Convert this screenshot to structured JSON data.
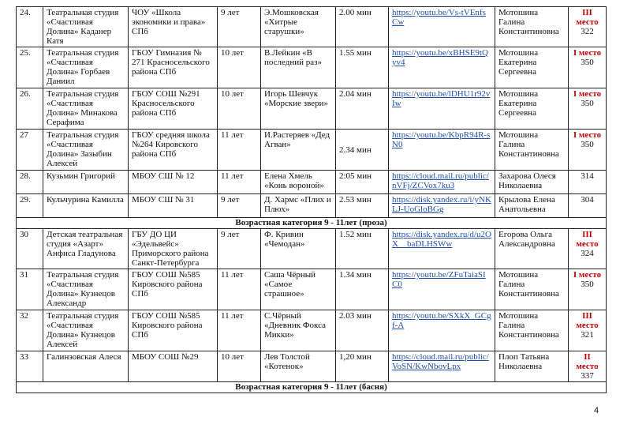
{
  "rows": [
    {
      "type": "entry",
      "num": "24.",
      "participant": "Театральная студия «Счастливая Долина» Каданер Катя",
      "school": "ЧОУ «Школа экономики и права» СПб",
      "age": "9 лет",
      "work": "Э.Мошковская «Хитрые старушки»",
      "duration": "2.00 мин",
      "link": "https://youtu.be/Vs-tVEnfsCw",
      "teacher": "Мотошина Галина Константиновна",
      "place": "III место",
      "score": "322"
    },
    {
      "type": "entry",
      "num": "25.",
      "participant": "Театральная студия «Счастливая Долина» Горбаев Даниил",
      "school": "ГБОУ Гимназия № 271 Красносельского района СПб",
      "age": "10 лет",
      "work": "В.Лейкин «В последний раз»",
      "duration": "1.55 мин",
      "link": "https://youtu.be/xBHSE9tQyv4",
      "teacher": "Мотошина Екатерина Сергеевна",
      "place": "I место",
      "score": "350"
    },
    {
      "type": "entry",
      "num": "26.",
      "participant": "Театральная студия «Счастливая Долина» Минакова Серафима",
      "school": "ГБОУ СОШ №291 Красносельского района СПб",
      "age": "10 лет",
      "work": "Игорь Шевчук «Морские звери»",
      "duration": "2.04 мин",
      "link": "https://youtu.be/lDHU1r92vIw",
      "teacher": "Мотошина Екатерина Сергеевна",
      "place": "I место",
      "score": "350"
    },
    {
      "type": "entry",
      "num": "27",
      "participant": "Театральная студия «Счастливая Долина» Зазыбин Алексей",
      "school": "ГБОУ средняя школа №264 Кировского района СПб",
      "age": "11 лет",
      "work": "И.Растеряев «Дед Агван»",
      "duration": "2.34  мин",
      "link": "https://youtu.be/KbpR94R-sN0",
      "teacher": "Мотошина Галина Константиновна",
      "place": "I место",
      "score": "350"
    },
    {
      "type": "entry",
      "num": "28.",
      "participant": "Кузьмин Григорий",
      "school": "МБОУ СШ № 12",
      "age": "11 лет",
      "work": "Елена Хмель «Конь вороной»",
      "duration": "2:05 мин",
      "link": "https://cloud.mail.ru/public/nVFj/ZCVox7ku3",
      "teacher": "Захарова Олеся Николаевна",
      "place": "",
      "score": "314"
    },
    {
      "type": "entry",
      "num": "29.",
      "participant": "Кульчурина Камилла",
      "school": "МБОУ СШ № 31",
      "age": "9 лет",
      "work": "Д. Хармс «Плих и Плюх»",
      "duration": "2.53 мин",
      "link": "https://disk.yandex.ru/i/yNKLJ-UoGloBGg",
      "teacher": "Крылова Елена Анатольевна",
      "place": "",
      "score": "304"
    },
    {
      "type": "section",
      "title": "Возрастная категория 9 - 11лет (проза)"
    },
    {
      "type": "entry",
      "num": "30",
      "participant": "Детская театральная студия «Азарт» Анфиса Гладунова",
      "school": "ГБУ ДО ЦИ «Эдельвейс» Приморского района Санкт-Петербурга",
      "age": "9 лет",
      "work": "Ф. Кривин «Чемодан»",
      "duration": "1.52 мин",
      "link": "https://disk.yandex.ru/d/u2OX__baDLHSWw",
      "teacher": "Егорова Ольга Александровна",
      "place": "III место",
      "score": "324"
    },
    {
      "type": "entry",
      "num": "31",
      "participant": "Театральная студия «Счастливая Долина» Кузнецов Александр",
      "school": "ГБОУ СОШ №585 Кировского района СПб",
      "age": "11 лет",
      "work": "Саша Чёрный «Самое страшное»",
      "duration": "1.34 мин",
      "link": "https://youtu.be/ZFuTaiaSIC0",
      "teacher": "Мотошина Галина Константиновна",
      "place": "I место",
      "score": "350"
    },
    {
      "type": "entry",
      "num": "32",
      "participant": "Театральная студия «Счастливая Долина» Кузнецов Алексей",
      "school": "ГБОУ СОШ №585 Кировского района СПб",
      "age": "11 лет",
      "work": "С.Чёрный «Дневник Фокса Микки»",
      "duration": "2.03 мин",
      "link": "https://youtu.be/SXkX_GCgf-A",
      "teacher": "Мотошина Галина Константиновна",
      "place": "III место",
      "score": "321"
    },
    {
      "type": "entry",
      "num": "33",
      "participant": "Галинзовская Алеся",
      "school": "МБОУ СОШ №29",
      "age": "10 лет",
      "work": "Лев Толстой «Котенок»",
      "duration": "1,20 мин",
      "link": "https://cloud.mail.ru/public/VoSN/KwNbovLpx",
      "teacher": "Плоп Татьяна Николаевна",
      "place": "II место",
      "score": "337"
    },
    {
      "type": "section",
      "title": "Возрастная категория 9 - 11лет (басня)"
    }
  ],
  "page_number": "4",
  "colors": {
    "place": "#c00000",
    "link": "#1f4fa8"
  }
}
